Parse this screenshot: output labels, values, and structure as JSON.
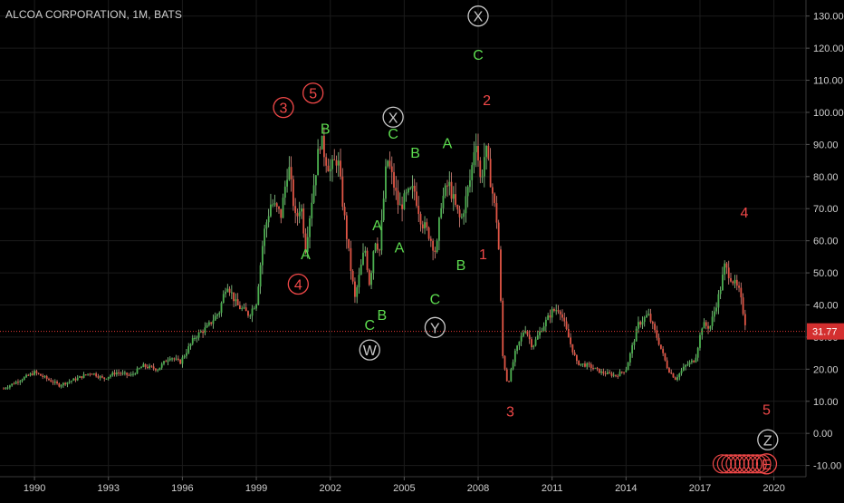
{
  "header": {
    "title": "ALCOA CORPORATION, 1M, BATS"
  },
  "colors": {
    "background": "#000000",
    "grid": "#1b1b1b",
    "up_candle": "#4caf50",
    "down_candle": "#e05545",
    "wick": "#b0b0b0",
    "wave_green": "#5ddb4f",
    "wave_red": "#f04848",
    "circle_gray": "#c8c8c8",
    "price_line": "#e53935",
    "axis_text": "#d0d0d0"
  },
  "chart_data": {
    "type": "candlestick",
    "title": "ALCOA CORPORATION, 1M, BATS",
    "xlabel": "",
    "ylabel": "",
    "xlim": [
      1988.6,
      2021.3
    ],
    "ylim": [
      -13.5,
      135
    ],
    "grid": true,
    "x_ticks": [
      "1990",
      "1993",
      "1996",
      "1999",
      "2002",
      "2005",
      "2008",
      "2011",
      "2014",
      "2017",
      "2020"
    ],
    "y_ticks": [
      "130.00",
      "120.00",
      "110.00",
      "100.00",
      "90.00",
      "80.00",
      "70.00",
      "60.00",
      "50.00",
      "40.00",
      "30.00",
      "20.00",
      "10.00",
      "0.00",
      "-10.00"
    ],
    "last_price": {
      "label": "31.77",
      "value": 31.77
    },
    "price_path": [
      [
        1988.75,
        14
      ],
      [
        1989.5,
        17
      ],
      [
        1990.0,
        19
      ],
      [
        1990.5,
        17
      ],
      [
        1991.0,
        15
      ],
      [
        1991.7,
        17
      ],
      [
        1992.3,
        19
      ],
      [
        1992.8,
        17
      ],
      [
        1993.3,
        19
      ],
      [
        1993.9,
        18
      ],
      [
        1994.4,
        21
      ],
      [
        1995.0,
        20
      ],
      [
        1995.5,
        24
      ],
      [
        1995.9,
        22
      ],
      [
        1996.5,
        30
      ],
      [
        1997.0,
        33
      ],
      [
        1997.5,
        38
      ],
      [
        1997.8,
        47
      ],
      [
        1998.2,
        40
      ],
      [
        1998.7,
        37
      ],
      [
        1999.0,
        41
      ],
      [
        1999.3,
        62
      ],
      [
        1999.6,
        72
      ],
      [
        2000.0,
        68
      ],
      [
        2000.3,
        84
      ],
      [
        2000.6,
        66
      ],
      [
        2000.8,
        72
      ],
      [
        2001.0,
        58
      ],
      [
        2001.3,
        76
      ],
      [
        2001.6,
        92
      ],
      [
        2001.8,
        86
      ],
      [
        2002.0,
        82
      ],
      [
        2002.3,
        86
      ],
      [
        2002.5,
        72
      ],
      [
        2002.8,
        53
      ],
      [
        2003.0,
        42
      ],
      [
        2003.2,
        50
      ],
      [
        2003.4,
        58
      ],
      [
        2003.6,
        46
      ],
      [
        2003.8,
        61
      ],
      [
        2004.0,
        57
      ],
      [
        2004.3,
        86
      ],
      [
        2004.5,
        80
      ],
      [
        2004.8,
        70
      ],
      [
        2005.1,
        74
      ],
      [
        2005.4,
        76
      ],
      [
        2005.7,
        66
      ],
      [
        2006.0,
        62
      ],
      [
        2006.3,
        56
      ],
      [
        2006.5,
        72
      ],
      [
        2006.8,
        78
      ],
      [
        2007.1,
        70
      ],
      [
        2007.3,
        66
      ],
      [
        2007.7,
        80
      ],
      [
        2007.9,
        93
      ],
      [
        2008.1,
        78
      ],
      [
        2008.3,
        89
      ],
      [
        2008.5,
        79
      ],
      [
        2008.8,
        64
      ],
      [
        2009.0,
        24
      ],
      [
        2009.2,
        15
      ],
      [
        2009.5,
        25
      ],
      [
        2009.9,
        33
      ],
      [
        2010.2,
        27
      ],
      [
        2010.6,
        33
      ],
      [
        2011.0,
        38
      ],
      [
        2011.3,
        39
      ],
      [
        2011.7,
        29
      ],
      [
        2012.0,
        22
      ],
      [
        2012.5,
        21
      ],
      [
        2013.0,
        19
      ],
      [
        2013.6,
        18
      ],
      [
        2014.0,
        20
      ],
      [
        2014.5,
        34
      ],
      [
        2014.9,
        37
      ],
      [
        2015.3,
        29
      ],
      [
        2015.7,
        20
      ],
      [
        2016.0,
        17
      ],
      [
        2016.4,
        21
      ],
      [
        2016.8,
        23
      ],
      [
        2017.1,
        34
      ],
      [
        2017.4,
        33
      ],
      [
        2017.8,
        44
      ],
      [
        2018.0,
        52
      ],
      [
        2018.3,
        48
      ],
      [
        2018.6,
        44
      ],
      [
        2018.9,
        31.77
      ]
    ],
    "wave_labels": [
      {
        "text": "3",
        "x": 2000.1,
        "y": 101.5,
        "color": "red",
        "circled": true
      },
      {
        "text": "5",
        "x": 2001.3,
        "y": 106,
        "color": "red",
        "circled": true
      },
      {
        "text": "4",
        "x": 2000.7,
        "y": 46.5,
        "color": "red",
        "circled": true
      },
      {
        "text": "B",
        "x": 2001.8,
        "y": 95,
        "color": "green",
        "circled": false
      },
      {
        "text": "A",
        "x": 2001.0,
        "y": 56,
        "color": "green",
        "circled": false
      },
      {
        "text": "A",
        "x": 2003.9,
        "y": 65,
        "color": "green",
        "circled": false
      },
      {
        "text": "A",
        "x": 2004.8,
        "y": 58,
        "color": "green",
        "circled": false
      },
      {
        "text": "C",
        "x": 2003.6,
        "y": 34,
        "color": "green",
        "circled": false
      },
      {
        "text": "B",
        "x": 2004.1,
        "y": 37,
        "color": "green",
        "circled": false
      },
      {
        "text": "W",
        "x": 2003.6,
        "y": 26,
        "color": "gray",
        "circled": true
      },
      {
        "text": "X",
        "x": 2004.55,
        "y": 98.5,
        "color": "gray",
        "circled": true
      },
      {
        "text": "C",
        "x": 2004.55,
        "y": 93.5,
        "color": "green",
        "circled": false
      },
      {
        "text": "B",
        "x": 2005.45,
        "y": 87.5,
        "color": "green",
        "circled": false
      },
      {
        "text": "A",
        "x": 2006.75,
        "y": 90.5,
        "color": "green",
        "circled": false
      },
      {
        "text": "B",
        "x": 2007.3,
        "y": 52.5,
        "color": "green",
        "circled": false
      },
      {
        "text": "C",
        "x": 2006.25,
        "y": 42,
        "color": "green",
        "circled": false
      },
      {
        "text": "Y",
        "x": 2006.25,
        "y": 33,
        "color": "gray",
        "circled": true
      },
      {
        "text": "X",
        "x": 2008.0,
        "y": 130,
        "color": "gray",
        "circled": true
      },
      {
        "text": "C",
        "x": 2008.0,
        "y": 118,
        "color": "green",
        "circled": false
      },
      {
        "text": "2",
        "x": 2008.35,
        "y": 104,
        "color": "red",
        "circled": false
      },
      {
        "text": "1",
        "x": 2008.2,
        "y": 56,
        "color": "red",
        "circled": false
      },
      {
        "text": "3",
        "x": 2009.3,
        "y": 7,
        "color": "red",
        "circled": false
      },
      {
        "text": "4",
        "x": 2018.8,
        "y": 69,
        "color": "red",
        "circled": false
      },
      {
        "text": "5",
        "x": 2019.7,
        "y": 7.5,
        "color": "red",
        "circled": false
      },
      {
        "text": "Z",
        "x": 2019.75,
        "y": -2,
        "color": "gray",
        "circled": true
      },
      {
        "text": "E",
        "x": 2019.7,
        "y": -9.5,
        "color": "red",
        "circled": true
      }
    ],
    "circle_cluster": {
      "x_start": 2017.9,
      "x_end": 2019.5,
      "y": -9.5,
      "count": 10
    }
  }
}
